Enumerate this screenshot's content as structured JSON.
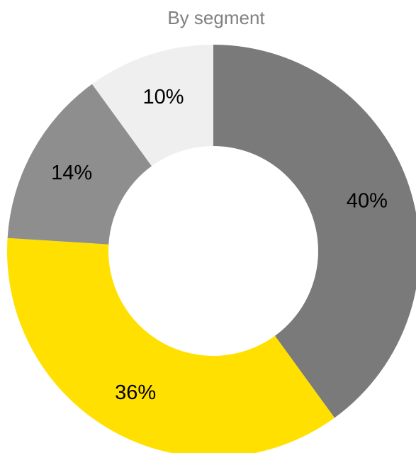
{
  "chart_data": {
    "type": "donut",
    "title": "By segment",
    "slices": [
      {
        "value": 40,
        "label": "40%",
        "color": "#7a7a7a"
      },
      {
        "value": 36,
        "label": "36%",
        "color": "#ffe000"
      },
      {
        "value": 14,
        "label": "14%",
        "color": "#8e8e8e"
      },
      {
        "value": 10,
        "label": "10%",
        "color": "#efefef"
      }
    ],
    "start_angle_deg": 0,
    "direction": "clockwise",
    "legend": "none",
    "background": "#ffffff"
  }
}
